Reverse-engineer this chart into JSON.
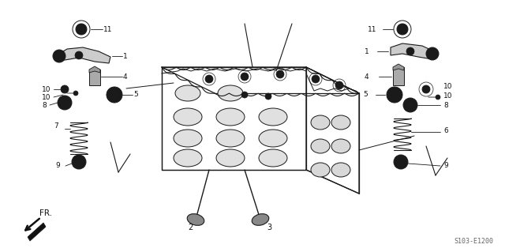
{
  "bg_color": "#ffffff",
  "line_color": "#1a1a1a",
  "part_number": "S103-E1200",
  "fr_label": "FR.",
  "figsize": [
    6.4,
    3.19
  ],
  "dpi": 100
}
